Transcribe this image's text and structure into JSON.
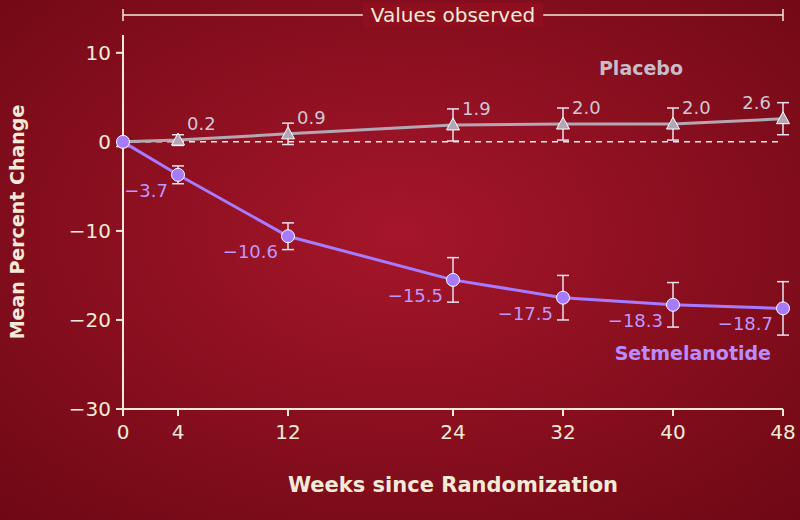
{
  "chart_data": {
    "type": "line",
    "title": "Values observed",
    "x": [
      0,
      4,
      12,
      24,
      32,
      40,
      48
    ],
    "xlim": [
      0,
      48
    ],
    "xticks": [
      0,
      4,
      12,
      24,
      32,
      40,
      48
    ],
    "ylim": [
      -30,
      12
    ],
    "yticks": [
      {
        "value": -30,
        "label": "−30"
      },
      {
        "value": -20,
        "label": "−20"
      },
      {
        "value": -10,
        "label": "−10"
      },
      0,
      10
    ],
    "x_label": "Weeks since Randomization",
    "y_label": "Mean Percent Change",
    "grid": false,
    "data_labels": true,
    "series": [
      {
        "name": "Placebo",
        "color": "#b3a7b5",
        "marker": "triangle",
        "values": [
          0,
          0.2,
          0.9,
          1.9,
          2.0,
          2.0,
          2.6
        ],
        "value_labels": [
          null,
          "0.2",
          "0.9",
          "1.9",
          "2.0",
          "2.0",
          "2.6"
        ],
        "errors": [
          0,
          0.6,
          1.2,
          1.8,
          1.8,
          1.8,
          1.8
        ]
      },
      {
        "name": "Setmelanotide",
        "color": "#a77bff",
        "marker": "circle",
        "values": [
          0,
          -3.7,
          -10.6,
          -15.5,
          -17.5,
          -18.3,
          -18.7
        ],
        "value_labels": [
          null,
          "−3.7",
          "−10.6",
          "−15.5",
          "−17.5",
          "−18.3",
          "−18.7"
        ],
        "errors": [
          0,
          1,
          1.5,
          2.5,
          2.5,
          2.5,
          3
        ]
      }
    ]
  }
}
